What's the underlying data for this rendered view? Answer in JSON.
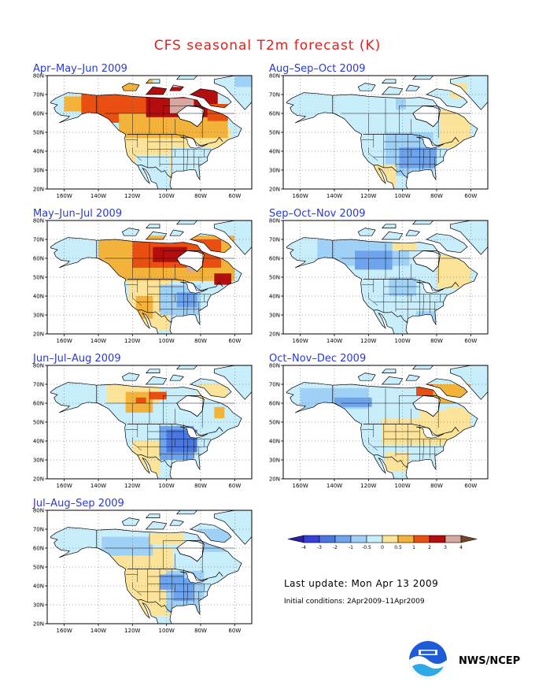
{
  "title": "CFS seasonal T2m forecast (K)",
  "panels": [
    {
      "title": "Apr–May–Jun 2009",
      "anomaly": "warm-north"
    },
    {
      "title": "Aug–Sep–Oct 2009",
      "anomaly": "cool-mild"
    },
    {
      "title": "May–Jun–Jul 2009",
      "anomaly": "warm-north-2"
    },
    {
      "title": "Sep–Oct–Nov 2009",
      "anomaly": "cool-west"
    },
    {
      "title": "Jun–Jul–Aug 2009",
      "anomaly": "warm-west"
    },
    {
      "title": "Oct–Nov–Dec 2009",
      "anomaly": "mixed"
    },
    {
      "title": "Jul–Aug–Sep 2009",
      "anomaly": "cool-east"
    }
  ],
  "axes": {
    "lat_labels": [
      "80N",
      "70N",
      "60N",
      "50N",
      "40N",
      "30N",
      "20N"
    ],
    "lon_labels": [
      "160W",
      "140W",
      "120W",
      "100W",
      "80W",
      "60W"
    ]
  },
  "legend": {
    "labels": [
      "-4",
      "-3",
      "-2",
      "-1",
      "-0.5",
      "0",
      "0.5",
      "1",
      "2",
      "3",
      "4"
    ],
    "colors": [
      "#2c1fa8",
      "#3540d8",
      "#4a78e0",
      "#6ea4ee",
      "#9fd0f5",
      "#c8eefc",
      "#fbe49a",
      "#f3b23a",
      "#e84f10",
      "#b50d0d",
      "#d8a8a0",
      "#7a4428"
    ]
  },
  "last_update": "Last update: Mon Apr 13 2009",
  "initial_conditions": "Initial conditions: 2Apr2009–11Apr2009",
  "organization": "NWS/NCEP"
}
